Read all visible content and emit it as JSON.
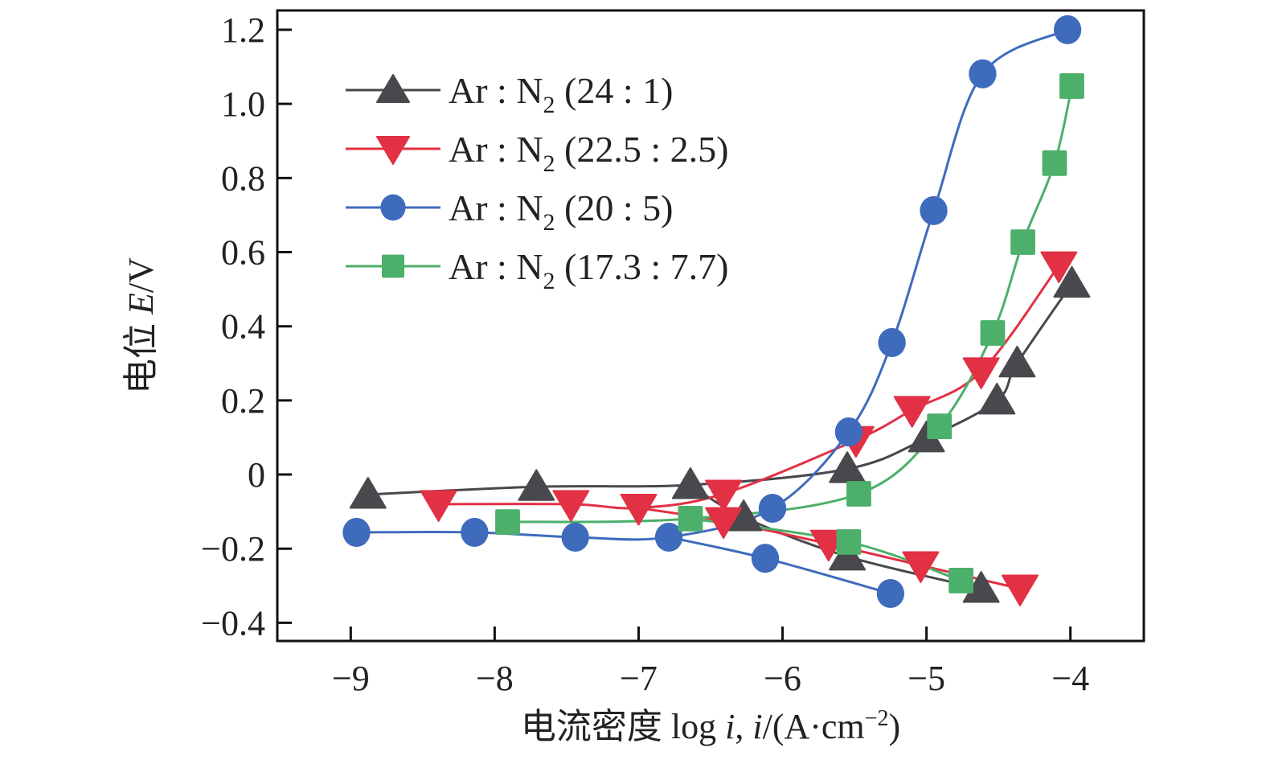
{
  "chart_data": {
    "type": "line",
    "title": "",
    "xlabel": "电流密度 log i, i/(A·cm⁻²)",
    "xlabel_parts": {
      "cn": "电流密度 ",
      "log": "log ",
      "i1": "i",
      "sep": ", ",
      "i2": "i",
      "unit_open": "/(A·cm",
      "sup": "−2",
      "unit_close": ")"
    },
    "ylabel": "电位 E/V",
    "ylabel_parts": {
      "cn": "电位 ",
      "E": "E",
      "unit": "/V"
    },
    "xlim": [
      -9.51,
      -3.49
    ],
    "ylim": [
      -0.449,
      1.252
    ],
    "x_ticks": [
      -9,
      -8,
      -7,
      -6,
      -5,
      -4
    ],
    "x_tick_labels": [
      "−9",
      "−8",
      "−7",
      "−6",
      "−5",
      "−4"
    ],
    "y_ticks": [
      1.2,
      1.0,
      0.8,
      0.6,
      0.4,
      0.2,
      0,
      -0.2,
      -0.4
    ],
    "y_tick_labels": [
      "1.2",
      "1.0",
      "0.8",
      "0.6",
      "0.4",
      "0.2",
      "0",
      "−0.2",
      "−0.4"
    ],
    "grid": false,
    "legend_position": "top-left",
    "series": [
      {
        "name": "Ar : N2 (24 : 1)",
        "label_parts": {
          "a": "Ar : N",
          "sub": "2",
          "b": " (24 : 1)"
        },
        "color": "#48484d",
        "marker": "triangle-up",
        "anodic": {
          "x": [
            -8.88,
            -7.71,
            -6.64,
            -5.55,
            -5.0,
            -4.51,
            -4.37,
            -3.99
          ],
          "y": [
            -0.054,
            -0.033,
            -0.028,
            0.015,
            0.098,
            0.2,
            0.3,
            0.515
          ]
        },
        "cathodic": {
          "x": [
            -6.27,
            -5.55,
            -4.62
          ],
          "y": [
            -0.115,
            -0.221,
            -0.308
          ]
        },
        "branch_start": {
          "x": -6.64,
          "y": -0.028
        }
      },
      {
        "name": "Ar : N2 (22.5 : 2.5)",
        "label_parts": {
          "a": "Ar : N",
          "sub": "2",
          "b": " (22.5 : 2.5)"
        },
        "color": "#e23044",
        "marker": "triangle-down",
        "anodic": {
          "x": [
            -8.39,
            -7.47,
            -7.0,
            -6.41,
            -5.49,
            -5.1,
            -4.62,
            -4.08
          ],
          "y": [
            -0.08,
            -0.08,
            -0.09,
            -0.052,
            0.093,
            0.174,
            0.278,
            0.564
          ]
        },
        "cathodic": {
          "x": [
            -6.41,
            -5.68,
            -5.04,
            -4.35
          ],
          "y": [
            -0.126,
            -0.187,
            -0.245,
            -0.308
          ]
        },
        "branch_start": {
          "x": -7.0,
          "y": -0.09
        }
      },
      {
        "name": "Ar : N2 (20 : 5)",
        "label_parts": {
          "a": "Ar : N",
          "sub": "2",
          "b": " (20 : 5)"
        },
        "color": "#3f6bbd",
        "marker": "circle",
        "anodic": {
          "x": [
            -8.96,
            -8.14,
            -7.44,
            -6.79,
            -6.07,
            -5.54,
            -5.24,
            -4.95,
            -4.61,
            -4.02
          ],
          "y": [
            -0.156,
            -0.156,
            -0.169,
            -0.169,
            -0.091,
            0.115,
            0.356,
            0.712,
            1.081,
            1.2
          ]
        },
        "cathodic": {
          "x": [
            -6.12,
            -5.25
          ],
          "y": [
            -0.226,
            -0.321
          ]
        },
        "branch_start": {
          "x": -6.79,
          "y": -0.169
        }
      },
      {
        "name": "Ar : N2 (17.3 : 7.7)",
        "label_parts": {
          "a": "Ar : N",
          "sub": "2",
          "b": " (17.3 : 7.7)"
        },
        "color": "#4caf6a",
        "marker": "square",
        "anodic": {
          "x": [
            -7.91,
            -6.64,
            -5.47,
            -4.91,
            -4.54,
            -4.33,
            -4.11,
            -3.99
          ],
          "y": [
            -0.128,
            -0.119,
            -0.052,
            0.13,
            0.382,
            0.627,
            0.84,
            1.048
          ]
        },
        "cathodic": {
          "x": [
            -5.54,
            -4.76
          ],
          "y": [
            -0.182,
            -0.286
          ]
        },
        "branch_start": {
          "x": -6.64,
          "y": -0.119
        }
      }
    ]
  }
}
